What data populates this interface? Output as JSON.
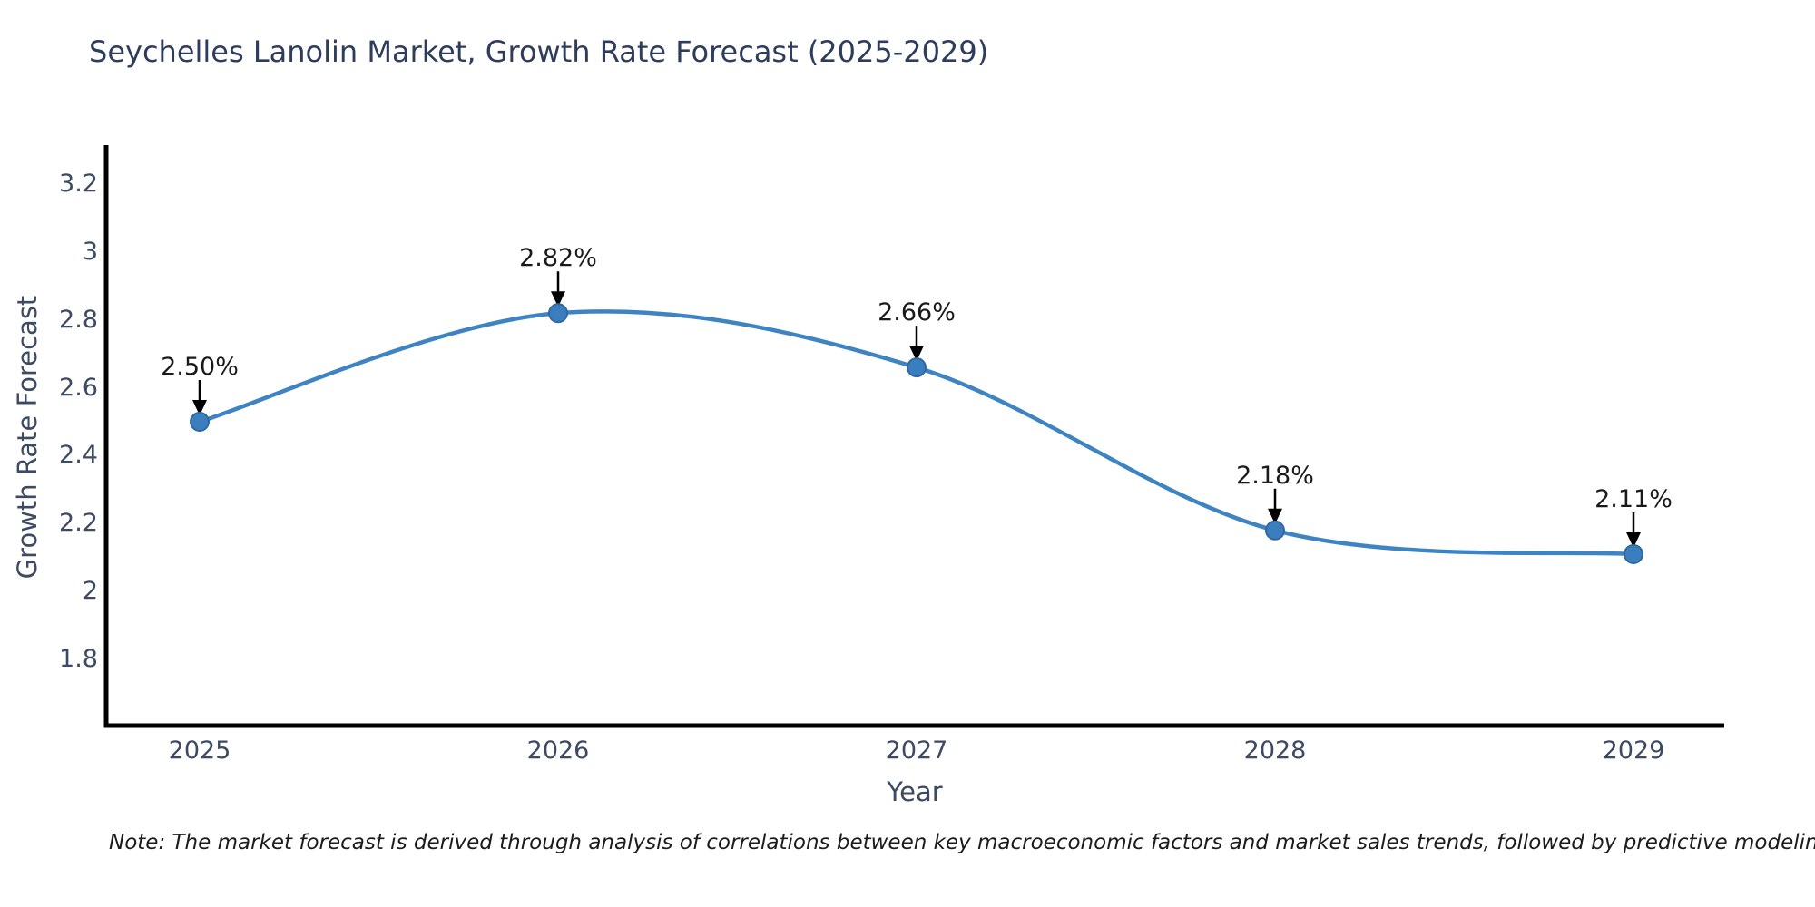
{
  "title": "Seychelles Lanolin Market, Growth Rate Forecast (2025-2029)",
  "note": "Note: The market forecast is derived through analysis of correlations between key macroeconomic factors and market sales trends, followed by predictive modeling to project future sales",
  "chart_data": {
    "type": "line",
    "title": "Seychelles Lanolin Market, Growth Rate Forecast (2025-2029)",
    "xlabel": "Year",
    "ylabel": "Growth Rate Forecast",
    "categories": [
      "2025",
      "2026",
      "2027",
      "2028",
      "2029"
    ],
    "x": [
      2025,
      2026,
      2027,
      2028,
      2029
    ],
    "series": [
      {
        "name": "Growth Rate Forecast",
        "values": [
          2.5,
          2.82,
          2.66,
          2.18,
          2.11
        ]
      }
    ],
    "point_labels": [
      "2.50%",
      "2.82%",
      "2.66%",
      "2.18%",
      "2.11%"
    ],
    "ytick_labels": [
      "1.8",
      "2",
      "2.2",
      "2.4",
      "2.6",
      "2.8",
      "3",
      "3.2"
    ],
    "yticks": [
      1.8,
      2.0,
      2.2,
      2.4,
      2.6,
      2.8,
      3.0,
      3.2
    ],
    "ylim": [
      1.61,
      3.31
    ],
    "grid": false,
    "legend": false,
    "line_smooth": true,
    "colors": {
      "line": "#3f84c2",
      "marker_fill": "#3a7ebf",
      "marker_edge": "#31699e",
      "spine": "#000000",
      "arrow": "#000000",
      "title": "#2e3d5c",
      "tick": "#3d4a63"
    }
  }
}
